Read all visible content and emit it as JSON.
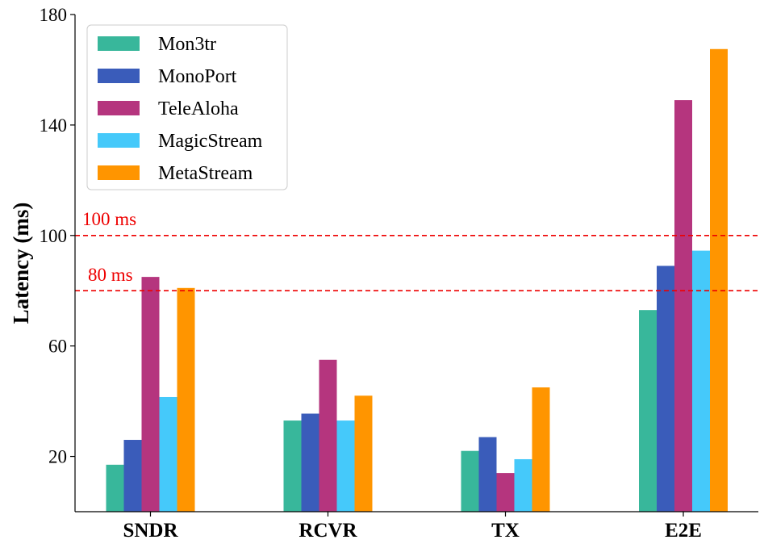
{
  "chart_data": {
    "type": "bar",
    "title": "",
    "xlabel": "",
    "ylabel": "Latency (ms)",
    "ylim": [
      0,
      180
    ],
    "yticks": [
      20,
      60,
      100,
      140,
      180
    ],
    "grid": false,
    "legend_position": "top-left",
    "categories": [
      "SNDR",
      "RCVR",
      "TX",
      "E2E"
    ],
    "series": [
      {
        "name": "Mon3tr",
        "color": "#38b79b",
        "values": [
          17,
          33,
          22,
          73
        ]
      },
      {
        "name": "MonoPort",
        "color": "#3a5cba",
        "values": [
          26,
          35.5,
          27,
          89
        ]
      },
      {
        "name": "TeleAloha",
        "color": "#b5357e",
        "values": [
          85,
          55,
          14,
          149
        ]
      },
      {
        "name": "MagicStream",
        "color": "#45c9fa",
        "values": [
          41.5,
          33,
          19,
          94.5
        ]
      },
      {
        "name": "MetaStream",
        "color": "#ff9500",
        "values": [
          81,
          42,
          45,
          167.5
        ]
      }
    ],
    "reference_lines": [
      {
        "value": 100,
        "label": "100 ms",
        "color": "#ee0000"
      },
      {
        "value": 80,
        "label": "80 ms",
        "color": "#ee0000"
      }
    ]
  }
}
